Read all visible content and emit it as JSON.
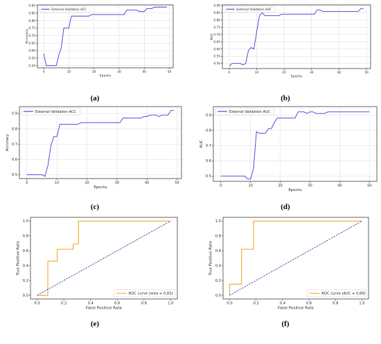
{
  "captions": [
    "(a)",
    "(b)",
    "(c)",
    "(d)",
    "(e)",
    "(f)"
  ],
  "colors": {
    "validation_line": "#3b3bd6",
    "roc_curve": "#f5a623",
    "diagonal": "#1f2f8c",
    "grid": "#d9d9d9",
    "axes": "#222222"
  },
  "chart_data": [
    {
      "type": "line",
      "xlabel": "Epochs",
      "ylabel": "Accuracy",
      "xlim": [
        -2.5,
        51.5
      ],
      "ylim": [
        0.485,
        0.905
      ],
      "xticks": [
        0,
        10,
        20,
        30,
        40,
        50
      ],
      "yticks": [
        0.5,
        0.55,
        0.6,
        0.65,
        0.7,
        0.75,
        0.8,
        0.85,
        0.9
      ],
      "ytick_labels": [
        "0.50",
        "0.55",
        "0.60",
        "0.65",
        "0.70",
        "0.75",
        "0.80",
        "0.85",
        "0.90"
      ],
      "grid": true,
      "legend": "upper-left",
      "series": [
        {
          "name": "External Validation ACC",
          "x": [
            0,
            1,
            2,
            3,
            4,
            5,
            6,
            7,
            8,
            9,
            10,
            11,
            12,
            13,
            14,
            15,
            16,
            17,
            18,
            19,
            20,
            21,
            22,
            23,
            24,
            25,
            26,
            27,
            28,
            29,
            30,
            31,
            32,
            33,
            34,
            35,
            36,
            37,
            38,
            39,
            40,
            41,
            42,
            43,
            44,
            45,
            46,
            47,
            48,
            49
          ],
          "y": [
            0.58,
            0.5,
            0.5,
            0.5,
            0.5,
            0.5,
            0.57,
            0.62,
            0.75,
            0.75,
            0.75,
            0.83,
            0.83,
            0.83,
            0.83,
            0.83,
            0.83,
            0.83,
            0.83,
            0.84,
            0.84,
            0.84,
            0.84,
            0.84,
            0.84,
            0.84,
            0.84,
            0.84,
            0.84,
            0.84,
            0.84,
            0.84,
            0.84,
            0.87,
            0.87,
            0.87,
            0.87,
            0.87,
            0.86,
            0.86,
            0.86,
            0.88,
            0.88,
            0.88,
            0.89,
            0.89,
            0.89,
            0.89,
            0.89,
            0.89
          ]
        }
      ]
    },
    {
      "type": "line",
      "xlabel": "Epochs",
      "ylabel": "AUC",
      "xlim": [
        -2.5,
        51.5
      ],
      "ylim": [
        0.465,
        0.905
      ],
      "xticks": [
        0,
        10,
        20,
        30,
        40,
        50
      ],
      "yticks": [
        0.5,
        0.55,
        0.6,
        0.65,
        0.7,
        0.75,
        0.8,
        0.85,
        0.9
      ],
      "ytick_labels": [
        "0.50",
        "0.55",
        "0.60",
        "0.65",
        "0.70",
        "0.75",
        "0.80",
        "0.85",
        "0.90"
      ],
      "grid": true,
      "legend": "upper-left",
      "series": [
        {
          "name": "External Validation AUC",
          "x": [
            0,
            1,
            2,
            3,
            4,
            5,
            6,
            7,
            8,
            9,
            10,
            11,
            12,
            13,
            14,
            15,
            16,
            17,
            18,
            19,
            20,
            21,
            22,
            23,
            24,
            25,
            26,
            27,
            28,
            29,
            30,
            31,
            32,
            33,
            34,
            35,
            36,
            37,
            38,
            39,
            40,
            41,
            42,
            43,
            44,
            45,
            46,
            47,
            48,
            49
          ],
          "y": [
            0.48,
            0.5,
            0.5,
            0.5,
            0.5,
            0.49,
            0.5,
            0.59,
            0.61,
            0.6,
            0.72,
            0.83,
            0.85,
            0.83,
            0.83,
            0.83,
            0.83,
            0.83,
            0.83,
            0.84,
            0.84,
            0.84,
            0.84,
            0.84,
            0.84,
            0.84,
            0.84,
            0.84,
            0.84,
            0.84,
            0.84,
            0.84,
            0.87,
            0.87,
            0.86,
            0.86,
            0.86,
            0.86,
            0.86,
            0.86,
            0.86,
            0.86,
            0.86,
            0.86,
            0.86,
            0.86,
            0.86,
            0.86,
            0.88,
            0.88
          ]
        }
      ]
    },
    {
      "type": "line",
      "xlabel": "Epochs",
      "ylabel": "Accuracy",
      "xlim": [
        -2.5,
        51.5
      ],
      "ylim": [
        0.475,
        0.945
      ],
      "xticks": [
        0,
        10,
        20,
        30,
        40,
        50
      ],
      "yticks": [
        0.5,
        0.6,
        0.7,
        0.8,
        0.9
      ],
      "ytick_labels": [
        "0.5",
        "0.6",
        "0.7",
        "0.8",
        "0.9"
      ],
      "grid": true,
      "legend": "upper-left",
      "series": [
        {
          "name": "External Validation ACC",
          "x": [
            0,
            1,
            2,
            3,
            4,
            5,
            6,
            7,
            8,
            9,
            10,
            11,
            12,
            13,
            14,
            15,
            16,
            17,
            18,
            19,
            20,
            21,
            22,
            23,
            24,
            25,
            26,
            27,
            28,
            29,
            30,
            31,
            32,
            33,
            34,
            35,
            36,
            37,
            38,
            39,
            40,
            41,
            42,
            43,
            44,
            45,
            46,
            47,
            48,
            49
          ],
          "y": [
            0.5,
            0.5,
            0.5,
            0.5,
            0.5,
            0.5,
            0.49,
            0.56,
            0.69,
            0.75,
            0.75,
            0.83,
            0.83,
            0.83,
            0.83,
            0.83,
            0.83,
            0.83,
            0.84,
            0.84,
            0.84,
            0.84,
            0.84,
            0.84,
            0.84,
            0.84,
            0.84,
            0.84,
            0.84,
            0.84,
            0.84,
            0.84,
            0.87,
            0.87,
            0.87,
            0.87,
            0.87,
            0.87,
            0.87,
            0.88,
            0.88,
            0.89,
            0.89,
            0.89,
            0.88,
            0.89,
            0.89,
            0.89,
            0.92,
            0.92
          ]
        }
      ]
    },
    {
      "type": "line",
      "xlabel": "Epochs",
      "ylabel": "AUC",
      "xlim": [
        -2.5,
        52.5
      ],
      "ylim": [
        0.465,
        0.955
      ],
      "xticks": [
        0,
        10,
        20,
        30,
        40,
        50
      ],
      "yticks": [
        0.5,
        0.6,
        0.7,
        0.8,
        0.9
      ],
      "ytick_labels": [
        "0.5",
        "0.6",
        "0.7",
        "0.8",
        "0.9"
      ],
      "grid": true,
      "legend": "upper-left",
      "series": [
        {
          "name": "External Validation AUC",
          "x": [
            0,
            1,
            2,
            3,
            4,
            5,
            6,
            7,
            8,
            9,
            10,
            11,
            12,
            13,
            14,
            15,
            16,
            17,
            18,
            19,
            20,
            21,
            22,
            23,
            24,
            25,
            26,
            27,
            28,
            29,
            30,
            31,
            32,
            33,
            34,
            35,
            36,
            37,
            38,
            39,
            40,
            41,
            42,
            43,
            44,
            45,
            46,
            47,
            48,
            49,
            50
          ],
          "y": [
            0.5,
            0.5,
            0.5,
            0.5,
            0.5,
            0.5,
            0.5,
            0.5,
            0.5,
            0.48,
            0.48,
            0.55,
            0.79,
            0.78,
            0.78,
            0.78,
            0.81,
            0.81,
            0.85,
            0.88,
            0.88,
            0.88,
            0.88,
            0.88,
            0.88,
            0.88,
            0.92,
            0.92,
            0.92,
            0.91,
            0.92,
            0.92,
            0.91,
            0.91,
            0.91,
            0.91,
            0.92,
            0.92,
            0.92,
            0.92,
            0.92,
            0.92,
            0.92,
            0.92,
            0.92,
            0.92,
            0.92,
            0.92,
            0.92,
            0.92,
            0.92
          ]
        }
      ]
    },
    {
      "type": "line",
      "xlabel": "False Positive Rate",
      "ylabel": "True Positive Rate",
      "xlim": [
        -0.05,
        1.05
      ],
      "ylim": [
        -0.05,
        1.05
      ],
      "xticks": [
        0.0,
        0.2,
        0.4,
        0.6,
        0.8,
        1.0
      ],
      "xtick_labels": [
        "0.0",
        "0.2",
        "0.4",
        "0.6",
        "0.8",
        "1.0"
      ],
      "yticks": [
        0.0,
        0.2,
        0.4,
        0.6,
        0.8,
        1.0
      ],
      "ytick_labels": [
        "0.0",
        "0.2",
        "0.4",
        "0.6",
        "0.8",
        "1.0"
      ],
      "grid": false,
      "legend": "lower-right",
      "series": [
        {
          "name": "ROC curve (area = 0.83)",
          "style": "step",
          "x": [
            0.0,
            0.0,
            0.08,
            0.08,
            0.08,
            0.08,
            0.15,
            0.15,
            0.23,
            0.23,
            0.27,
            0.27,
            0.31,
            0.31,
            1.0
          ],
          "y": [
            0.0,
            0.0,
            0.0,
            0.15,
            0.15,
            0.46,
            0.46,
            0.62,
            0.62,
            0.62,
            0.62,
            0.69,
            0.69,
            1.0,
            1.0
          ]
        },
        {
          "name": "",
          "style": "dashed",
          "x": [
            0.0,
            1.0
          ],
          "y": [
            0.0,
            1.0
          ]
        }
      ]
    },
    {
      "type": "line",
      "xlabel": "False Positive Rate",
      "ylabel": "True Positive Rate",
      "xlim": [
        -0.05,
        1.05
      ],
      "ylim": [
        -0.05,
        1.05
      ],
      "xticks": [
        0.0,
        0.2,
        0.4,
        0.6,
        0.8,
        1.0
      ],
      "xtick_labels": [
        "0.0",
        "0.2",
        "0.4",
        "0.6",
        "0.8",
        "1.0"
      ],
      "yticks": [
        0.0,
        0.2,
        0.4,
        0.6,
        0.8,
        1.0
      ],
      "ytick_labels": [
        "0.0",
        "0.2",
        "0.4",
        "0.6",
        "0.8",
        "1.0"
      ],
      "grid": false,
      "legend": "lower-right",
      "series": [
        {
          "name": "ROC curve (AUC = 0.89)",
          "style": "step",
          "x": [
            0.0,
            0.0,
            0.09,
            0.09,
            0.18,
            0.18,
            1.0
          ],
          "y": [
            0.0,
            0.15,
            0.15,
            0.62,
            0.62,
            1.0,
            1.0
          ]
        },
        {
          "name": "",
          "style": "dashed",
          "x": [
            0.0,
            1.0
          ],
          "y": [
            0.0,
            1.0
          ]
        }
      ]
    }
  ]
}
